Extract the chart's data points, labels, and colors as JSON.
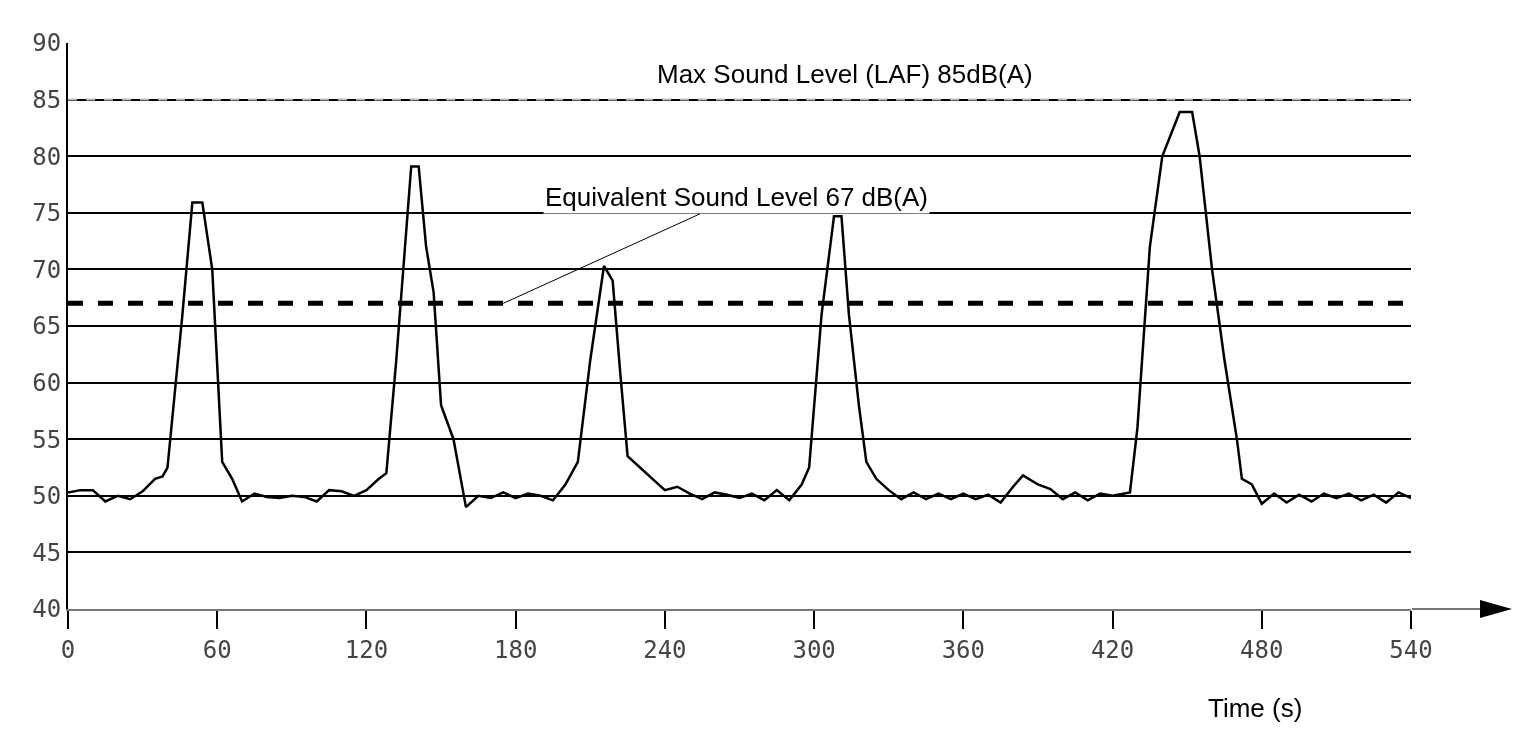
{
  "chart_data": {
    "type": "line",
    "xlabel": "Time (s)",
    "x": [
      0,
      5,
      10,
      15,
      20,
      25,
      30,
      35,
      38,
      40,
      46,
      50,
      54,
      58,
      62,
      66,
      70,
      75,
      80,
      85,
      90,
      95,
      100,
      105,
      110,
      115,
      120,
      125,
      128,
      132,
      138,
      141,
      144,
      147,
      150,
      155,
      160,
      165,
      170,
      175,
      180,
      185,
      190,
      195,
      200,
      205,
      210,
      215.5,
      219,
      222,
      225,
      230,
      235,
      240,
      245,
      250,
      255,
      260,
      265,
      270,
      275,
      280,
      285,
      290,
      295,
      298,
      303,
      308,
      311,
      314,
      318,
      321,
      325,
      330,
      335,
      340,
      345,
      350,
      355,
      360,
      365,
      370,
      375,
      380,
      384,
      390,
      395,
      400,
      405,
      410,
      415,
      420,
      427,
      430,
      435,
      440,
      447,
      452,
      455,
      460,
      465,
      470,
      472,
      476,
      480,
      485,
      490,
      495,
      500,
      505,
      510,
      515,
      520,
      525,
      530,
      535,
      540
    ],
    "series": [
      {
        "color": "#000000",
        "values": [
          50.3,
          50.5,
          50.5,
          49.5,
          50,
          49.7,
          50.4,
          51.5,
          51.7,
          52.5,
          66,
          75.9,
          75.9,
          70,
          53,
          51.5,
          49.5,
          50.2,
          49.9,
          49.8,
          50,
          49.9,
          49.5,
          50.5,
          50.4,
          50,
          50.5,
          51.5,
          52,
          62,
          79.1,
          79.1,
          72,
          68,
          58,
          55,
          49,
          50,
          49.8,
          50.3,
          49.8,
          50.2,
          50,
          49.6,
          51,
          53,
          62,
          70.3,
          69,
          61,
          53.5,
          52.5,
          51.5,
          50.5,
          50.8,
          50.2,
          49.7,
          50.3,
          50.1,
          49.8,
          50.2,
          49.6,
          50.5,
          49.6,
          51,
          52.5,
          66,
          74.7,
          74.7,
          66,
          58,
          53,
          51.5,
          50.5,
          49.7,
          50.3,
          49.7,
          50.2,
          49.7,
          50.2,
          49.7,
          50.1,
          49.4,
          50.8,
          51.8,
          51,
          50.6,
          49.7,
          50.3,
          49.6,
          50.2,
          50,
          50.3,
          56,
          72,
          80,
          83.9,
          83.9,
          80,
          70,
          62,
          55,
          51.5,
          51,
          49.3,
          50.2,
          49.4,
          50.1,
          49.5,
          50.2,
          49.8,
          50.2,
          49.6,
          50.1,
          49.4,
          50.3,
          49.8
        ]
      }
    ],
    "xlim": [
      0,
      540
    ],
    "xticks": [
      0,
      60,
      120,
      180,
      240,
      300,
      360,
      420,
      480,
      540
    ],
    "ylim": [
      40,
      90
    ],
    "yticks": [
      40,
      45,
      50,
      55,
      60,
      65,
      70,
      75,
      80,
      85,
      90
    ],
    "grid": "y",
    "marker": "none",
    "line_style": "solid",
    "ref_lines": [
      {
        "axis": "y",
        "value": 67,
        "label": "Equivalent Sound Level 67 dB(A)",
        "color": "#000000",
        "line_style": "dashed"
      },
      {
        "axis": "y",
        "value": 85,
        "label": "Max Sound Level (LAF) 85dB(A)",
        "color": "#bbbbbb",
        "line_style": "dashed"
      }
    ]
  }
}
